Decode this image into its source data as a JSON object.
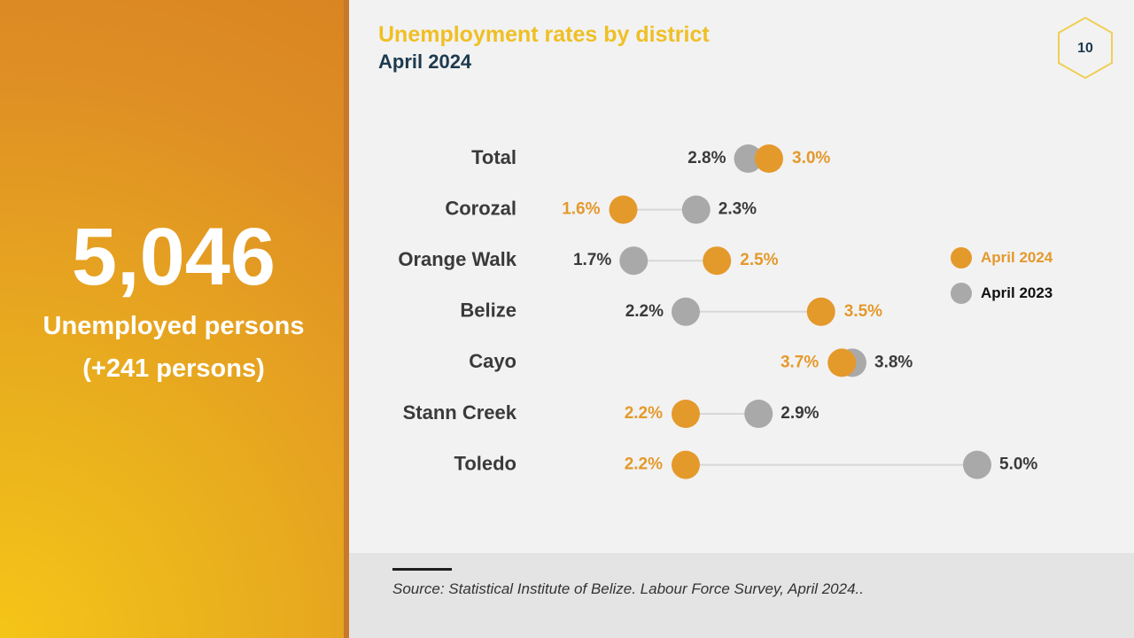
{
  "left": {
    "number": "5,046",
    "label_line1": "Unemployed persons",
    "label_line2": "(+241 persons)"
  },
  "title": "Unemployment rates by district",
  "subtitle": "April 2024",
  "page_number": "10",
  "source": "Source: Statistical Institute of Belize. Labour Force Survey, April 2024..",
  "legend": {
    "a2024": "April 2024",
    "a2023": "April 2023"
  },
  "colors": {
    "accent": "#e4992b",
    "gray": "#a9a9a9",
    "connector": "#d7d7d7",
    "label_dark": "#3a3a3a",
    "title": "#efbf25",
    "subtitle": "#1d3a4f",
    "badge": "#efcf55"
  },
  "chart_data": {
    "type": "dumbbell",
    "categories": [
      "Total",
      "Corozal",
      "Orange Walk",
      "Belize",
      "Cayo",
      "Stann Creek",
      "Toledo"
    ],
    "series": [
      {
        "name": "April 2024",
        "values": [
          3.0,
          1.6,
          2.5,
          3.5,
          3.7,
          2.2,
          2.2
        ],
        "labels": [
          "3.0%",
          "1.6%",
          "2.5%",
          "3.5%",
          "3.7%",
          "2.2%",
          "2.2%"
        ]
      },
      {
        "name": "April 2023",
        "values": [
          2.8,
          2.3,
          1.7,
          2.2,
          3.8,
          2.9,
          5.0
        ],
        "labels": [
          "2.8%",
          "2.3%",
          "1.7%",
          "2.2%",
          "3.8%",
          "2.9%",
          "5.0%"
        ]
      }
    ],
    "xlim": [
      0.6,
      5.5
    ],
    "legend_position": "right"
  }
}
